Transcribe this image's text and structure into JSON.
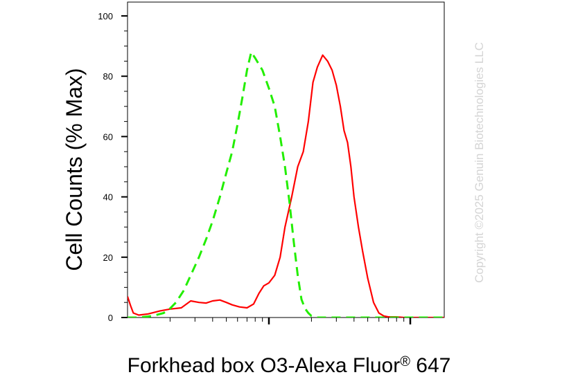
{
  "chart_data": {
    "type": "line",
    "title": "",
    "xlabel": "Forkhead box O3-Alexa Fluor",
    "xlabel_superscript": "®",
    "xlabel_suffix": " 647",
    "ylabel": "Cell Counts (% Max)",
    "x_scale": "log",
    "xlim": [
      10,
      10000
    ],
    "ylim": [
      0,
      100
    ],
    "yticks": [
      0,
      20,
      40,
      60,
      80,
      100
    ],
    "ytick_labels": [
      "0",
      "20",
      "40",
      "60",
      "80",
      "100"
    ],
    "grid": false,
    "legend": "none",
    "series": [
      {
        "color": "#ff0000",
        "style": "solid",
        "x": [
          10,
          10.5,
          11,
          12,
          14,
          17,
          20,
          24,
          28,
          32,
          36,
          40,
          45,
          50,
          55,
          62,
          70,
          78,
          85,
          92,
          100,
          110,
          120,
          130,
          145,
          160,
          175,
          190,
          205,
          220,
          240,
          260,
          280,
          300,
          320,
          340,
          360,
          380,
          400,
          430,
          460,
          500,
          550,
          600,
          650,
          700,
          750,
          800,
          900,
          1000,
          1200,
          1500,
          2000,
          3000,
          5000,
          7000,
          10000
        ],
        "y": [
          7,
          4,
          1.5,
          0.8,
          1.2,
          2.2,
          2.8,
          3.2,
          5.5,
          5,
          4.8,
          5.5,
          5.8,
          5,
          4.2,
          3.5,
          3.2,
          4.5,
          8,
          10.5,
          11.5,
          14,
          20,
          30,
          40,
          50,
          55,
          65,
          78,
          83,
          87,
          85,
          82,
          77,
          70,
          62,
          58,
          50,
          40,
          30,
          22,
          13,
          5,
          1.5,
          0.5,
          0.2,
          0.2,
          0.2,
          0,
          0,
          0,
          0,
          0,
          0,
          0,
          0,
          0
        ]
      },
      {
        "color": "#22ee00",
        "style": "dashed",
        "x": [
          10,
          12,
          15,
          18,
          20,
          22,
          25,
          28,
          32,
          36,
          40,
          45,
          50,
          55,
          60,
          65,
          70,
          75,
          80,
          90,
          100,
          110,
          120,
          130,
          140,
          150,
          160,
          170,
          180,
          190,
          200,
          220,
          250,
          300,
          350,
          500,
          700,
          1000,
          10000
        ],
        "y": [
          0,
          0,
          0.5,
          1.5,
          3,
          5,
          9,
          14,
          20,
          26,
          32,
          40,
          48,
          55,
          64,
          73,
          82,
          88,
          86,
          82,
          76,
          70,
          60,
          50,
          38,
          25,
          14,
          6,
          3,
          1.5,
          0.5,
          0,
          0,
          0,
          0,
          0,
          0,
          0,
          0
        ]
      }
    ]
  },
  "watermark": "Copyright ©2025 Genuin Biotechnologies LLC"
}
